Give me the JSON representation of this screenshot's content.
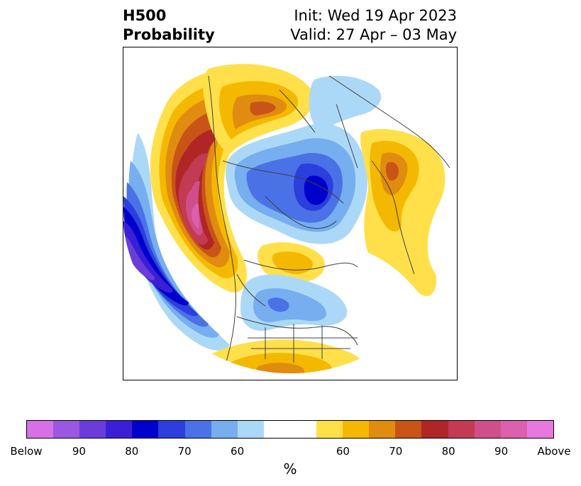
{
  "title": {
    "left_line1": "H500",
    "left_line2": "Probability",
    "right_line1": "Init: Wed 19 Apr 2023",
    "right_line2": "Valid: 27 Apr – 03 May"
  },
  "map": {
    "projection": "north-polar-stereographic",
    "anomalies": [
      {
        "region": "northeast-pacific-gulf-of-alaska",
        "sign": "below",
        "peak_category": "Below"
      },
      {
        "region": "western-canada-west-coast",
        "sign": "above",
        "peak_category": "Above"
      },
      {
        "region": "alaska-yukon-bering",
        "sign": "above",
        "peak_category": "70"
      },
      {
        "region": "central-arctic-greenland-siberia",
        "sign": "below",
        "peak_category": "80"
      },
      {
        "region": "scandinavia-western-russia",
        "sign": "above",
        "peak_category": "70"
      },
      {
        "region": "eastern-europe",
        "sign": "above",
        "peak_category": "60"
      },
      {
        "region": "central-united-states",
        "sign": "below",
        "peak_category": "60"
      },
      {
        "region": "hudson-bay-quebec",
        "sign": "above",
        "peak_category": "60"
      },
      {
        "region": "north-atlantic-southwest",
        "sign": "above",
        "peak_category": "70"
      }
    ]
  },
  "colorbar": {
    "colors": [
      "#d670e6",
      "#9b57e0",
      "#6a3ddb",
      "#3b1fd6",
      "#0000cc",
      "#2a3fdb",
      "#4a72e6",
      "#76aef0",
      "#acd8f8",
      "#ffffff",
      "#ffe04a",
      "#f5b800",
      "#e08c10",
      "#c85418",
      "#b02626",
      "#c33a55",
      "#cf5088",
      "#dd60ae",
      "#e678e0"
    ],
    "tick_labels": [
      "Below",
      "90",
      "80",
      "70",
      "60",
      "60",
      "70",
      "80",
      "90",
      "Above"
    ],
    "unit_label": "%"
  }
}
